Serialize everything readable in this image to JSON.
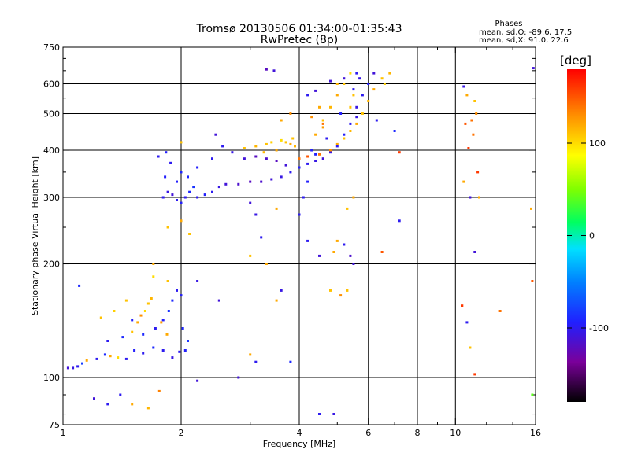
{
  "chart_data": {
    "type": "scatter",
    "title": "Tromsø 20130506 01:34:00-01:35:43",
    "subtitle": "RwPretec (8p)",
    "xlabel": "Frequency [MHz]",
    "ylabel": "Stationary phase Virtual Height [km]",
    "xscale": "log",
    "yscale": "log",
    "xlim": [
      1,
      16
    ],
    "ylim": [
      75,
      750
    ],
    "x_ticks": [
      1,
      2,
      4,
      6,
      8,
      10,
      16
    ],
    "x_tick_labels": [
      "1",
      "2",
      "4",
      "6",
      "8",
      "10",
      "16"
    ],
    "x_gridlines": [
      2,
      4,
      6,
      8,
      10
    ],
    "y_ticks": [
      75,
      100,
      200,
      300,
      400,
      500,
      600,
      750
    ],
    "y_tick_labels": [
      "75",
      "100",
      "200",
      "300",
      "400",
      "500",
      "600",
      "750"
    ],
    "y_gridlines": [
      100,
      200,
      300,
      400,
      500,
      600
    ],
    "grid": true,
    "stats": {
      "heading": "Phases",
      "line1": "mean, sd,O: -89.6, 17.5",
      "line2": "mean, sd,X:  91.0, 22.6"
    },
    "colorbar": {
      "label": "[deg]",
      "range": [
        -180,
        180
      ],
      "ticks": [
        100,
        0,
        -100
      ],
      "tick_labels": [
        "100",
        "0",
        "-100"
      ]
    },
    "series": [
      {
        "trace": "low-layer",
        "points": [
          [
            1.03,
            106,
            -110
          ],
          [
            1.06,
            106,
            -105
          ],
          [
            1.09,
            107,
            -100
          ],
          [
            1.12,
            109,
            -80
          ],
          [
            1.15,
            111,
            120
          ],
          [
            1.22,
            112,
            -100
          ],
          [
            1.28,
            115,
            -90
          ],
          [
            1.32,
            114,
            120
          ],
          [
            1.38,
            113,
            100
          ],
          [
            1.45,
            112,
            -100
          ],
          [
            1.52,
            118,
            -95
          ],
          [
            1.6,
            116,
            -100
          ],
          [
            1.7,
            120,
            -90
          ],
          [
            1.8,
            118,
            -100
          ],
          [
            1.9,
            113,
            -105
          ],
          [
            1.98,
            117,
            -100
          ],
          [
            2.05,
            118,
            -95
          ],
          [
            1.3,
            125,
            -100
          ],
          [
            1.42,
            128,
            -90
          ],
          [
            1.5,
            132,
            110
          ],
          [
            1.55,
            140,
            120
          ],
          [
            1.58,
            146,
            130
          ],
          [
            1.62,
            150,
            100
          ],
          [
            1.65,
            157,
            110
          ],
          [
            1.68,
            162,
            115
          ],
          [
            1.5,
            142,
            -95
          ],
          [
            1.6,
            130,
            -90
          ],
          [
            1.72,
            135,
            -100
          ],
          [
            1.8,
            142,
            -95
          ],
          [
            1.86,
            150,
            -85
          ],
          [
            1.9,
            160,
            -90
          ],
          [
            1.95,
            170,
            -100
          ],
          [
            2.0,
            165,
            -95
          ],
          [
            1.25,
            144,
            110
          ],
          [
            1.35,
            150,
            105
          ],
          [
            1.45,
            160,
            110
          ],
          [
            1.78,
            140,
            125
          ],
          [
            1.84,
            130,
            120
          ],
          [
            2.02,
            135,
            -90
          ],
          [
            2.08,
            125,
            -85
          ],
          [
            1.1,
            175,
            -90
          ],
          [
            1.85,
            180,
            110
          ],
          [
            1.7,
            185,
            100
          ],
          [
            1.4,
            90,
            -100
          ],
          [
            1.5,
            85,
            120
          ],
          [
            1.65,
            83,
            115
          ],
          [
            1.2,
            88,
            -110
          ],
          [
            1.3,
            85,
            -100
          ],
          [
            2.2,
            98,
            -110
          ],
          [
            1.76,
            92,
            135
          ]
        ]
      },
      {
        "trace": "F-layer-O",
        "points": [
          [
            1.8,
            300,
            -100
          ],
          [
            1.85,
            310,
            -105
          ],
          [
            1.9,
            305,
            -110
          ],
          [
            1.95,
            295,
            -100
          ],
          [
            2.0,
            290,
            -95
          ],
          [
            2.05,
            300,
            -100
          ],
          [
            2.1,
            310,
            -90
          ],
          [
            2.15,
            320,
            -85
          ],
          [
            2.2,
            300,
            -100
          ],
          [
            2.3,
            305,
            -95
          ],
          [
            2.4,
            310,
            -100
          ],
          [
            2.5,
            320,
            -105
          ],
          [
            2.6,
            325,
            -110
          ],
          [
            2.8,
            325,
            -115
          ],
          [
            3.0,
            330,
            -120
          ],
          [
            3.2,
            330,
            -115
          ],
          [
            3.4,
            335,
            -110
          ],
          [
            3.6,
            340,
            -105
          ],
          [
            3.8,
            350,
            -100
          ],
          [
            4.0,
            360,
            -95
          ],
          [
            4.2,
            368,
            -100
          ],
          [
            4.4,
            375,
            -105
          ],
          [
            4.6,
            380,
            -110
          ],
          [
            4.8,
            395,
            -105
          ],
          [
            5.0,
            410,
            -100
          ],
          [
            5.2,
            440,
            -95
          ],
          [
            5.4,
            470,
            -100
          ],
          [
            5.6,
            520,
            -105
          ],
          [
            5.8,
            560,
            -100
          ],
          [
            6.0,
            600,
            -95
          ],
          [
            1.82,
            340,
            -95
          ],
          [
            1.88,
            370,
            -100
          ],
          [
            1.95,
            330,
            -95
          ],
          [
            2.0,
            350,
            -90
          ],
          [
            1.75,
            385,
            -100
          ],
          [
            1.83,
            395,
            -95
          ],
          [
            2.08,
            340,
            -90
          ],
          [
            2.2,
            360,
            -95
          ],
          [
            2.4,
            380,
            -100
          ],
          [
            2.45,
            440,
            -110
          ],
          [
            2.55,
            410,
            -100
          ],
          [
            2.7,
            395,
            -105
          ],
          [
            2.9,
            380,
            -110
          ],
          [
            3.1,
            385,
            -120
          ],
          [
            3.3,
            380,
            -115
          ],
          [
            3.5,
            375,
            -120
          ],
          [
            3.7,
            365,
            -110
          ],
          [
            4.3,
            400,
            -95
          ],
          [
            4.7,
            430,
            -100
          ],
          [
            5.1,
            500,
            -95
          ],
          [
            5.5,
            580,
            -100
          ],
          [
            5.7,
            620,
            -105
          ],
          [
            6.2,
            640,
            -110
          ],
          [
            3.3,
            655,
            -120
          ],
          [
            3.45,
            650,
            -110
          ],
          [
            4.4,
            390,
            -95
          ]
        ]
      },
      {
        "trace": "F-layer-X",
        "points": [
          [
            2.9,
            405,
            110
          ],
          [
            3.1,
            410,
            115
          ],
          [
            3.3,
            415,
            110
          ],
          [
            3.4,
            420,
            105
          ],
          [
            3.6,
            425,
            100
          ],
          [
            3.7,
            420,
            110
          ],
          [
            3.8,
            415,
            120
          ],
          [
            3.9,
            410,
            115
          ],
          [
            4.0,
            380,
            140
          ],
          [
            4.2,
            385,
            150
          ],
          [
            4.5,
            390,
            140
          ],
          [
            4.8,
            400,
            130
          ],
          [
            5.0,
            415,
            120
          ],
          [
            5.2,
            430,
            110
          ],
          [
            5.4,
            450,
            115
          ],
          [
            5.6,
            470,
            120
          ],
          [
            5.8,
            500,
            110
          ],
          [
            6.0,
            540,
            115
          ],
          [
            6.2,
            580,
            120
          ],
          [
            6.5,
            620,
            110
          ],
          [
            6.8,
            640,
            115
          ],
          [
            6.6,
            600,
            105
          ],
          [
            4.6,
            480,
            110
          ],
          [
            4.8,
            520,
            115
          ],
          [
            5.0,
            560,
            120
          ],
          [
            5.2,
            600,
            110
          ],
          [
            5.4,
            640,
            100
          ],
          [
            4.4,
            440,
            120
          ],
          [
            4.6,
            460,
            125
          ],
          [
            5.5,
            560,
            110
          ],
          [
            3.5,
            400,
            120
          ],
          [
            3.25,
            395,
            115
          ],
          [
            3.85,
            430,
            110
          ]
        ]
      },
      {
        "trace": "scattered",
        "points": [
          [
            10.5,
            590,
            -105
          ],
          [
            10.7,
            560,
            120
          ],
          [
            11.2,
            540,
            110
          ],
          [
            11.0,
            480,
            140
          ],
          [
            10.6,
            470,
            150
          ],
          [
            11.3,
            500,
            130
          ],
          [
            11.1,
            440,
            140
          ],
          [
            10.8,
            405,
            160
          ],
          [
            11.4,
            350,
            160
          ],
          [
            10.5,
            330,
            120
          ],
          [
            10.9,
            300,
            -110
          ],
          [
            11.5,
            300,
            120
          ],
          [
            11.2,
            215,
            -110
          ],
          [
            10.4,
            155,
            160
          ],
          [
            10.7,
            140,
            -100
          ],
          [
            10.9,
            120,
            110
          ],
          [
            11.2,
            102,
            160
          ],
          [
            15.8,
            660,
            -110
          ],
          [
            15.6,
            280,
            120
          ],
          [
            15.7,
            180,
            150
          ],
          [
            15.7,
            90,
            40
          ],
          [
            13.0,
            150,
            140
          ],
          [
            6.3,
            480,
            -100
          ],
          [
            7.0,
            450,
            -90
          ],
          [
            7.2,
            395,
            160
          ],
          [
            7.2,
            260,
            -100
          ],
          [
            6.5,
            215,
            150
          ],
          [
            5.3,
            280,
            110
          ],
          [
            5.5,
            200,
            -110
          ],
          [
            5.2,
            225,
            -100
          ],
          [
            5.4,
            210,
            -115
          ],
          [
            5.5,
            300,
            120
          ],
          [
            5.3,
            170,
            110
          ],
          [
            3.0,
            290,
            -110
          ],
          [
            3.1,
            270,
            -105
          ],
          [
            3.2,
            235,
            -100
          ],
          [
            3.5,
            280,
            120
          ],
          [
            4.2,
            230,
            -100
          ],
          [
            4.5,
            210,
            -110
          ],
          [
            4.9,
            215,
            120
          ],
          [
            4.8,
            170,
            110
          ],
          [
            5.1,
            165,
            130
          ],
          [
            5.0,
            230,
            120
          ],
          [
            3.3,
            200,
            120
          ],
          [
            3.6,
            170,
            -105
          ],
          [
            3.0,
            210,
            110
          ],
          [
            3.5,
            160,
            120
          ],
          [
            3.0,
            115,
            120
          ],
          [
            3.1,
            110,
            -100
          ],
          [
            2.5,
            160,
            -110
          ],
          [
            4.5,
            80,
            -100
          ],
          [
            4.9,
            80,
            -105
          ],
          [
            2.8,
            100,
            -110
          ],
          [
            3.8,
            110,
            -90
          ],
          [
            2.1,
            240,
            110
          ],
          [
            2.0,
            260,
            120
          ],
          [
            1.85,
            250,
            110
          ],
          [
            2.2,
            180,
            -105
          ],
          [
            1.7,
            200,
            120
          ],
          [
            2.0,
            420,
            110
          ],
          [
            5.6,
            640,
            -100
          ],
          [
            4.1,
            300,
            -100
          ],
          [
            4.2,
            330,
            -95
          ],
          [
            4.0,
            270,
            -100
          ],
          [
            5.6,
            490,
            -105
          ],
          [
            5.4,
            520,
            110
          ],
          [
            5.0,
            600,
            115
          ],
          [
            4.8,
            610,
            -110
          ],
          [
            5.2,
            620,
            -110
          ],
          [
            3.6,
            480,
            120
          ],
          [
            3.8,
            500,
            130
          ],
          [
            4.2,
            560,
            -100
          ],
          [
            4.4,
            575,
            -110
          ],
          [
            4.6,
            470,
            140
          ],
          [
            4.3,
            490,
            130
          ],
          [
            4.5,
            520,
            120
          ]
        ]
      }
    ]
  }
}
